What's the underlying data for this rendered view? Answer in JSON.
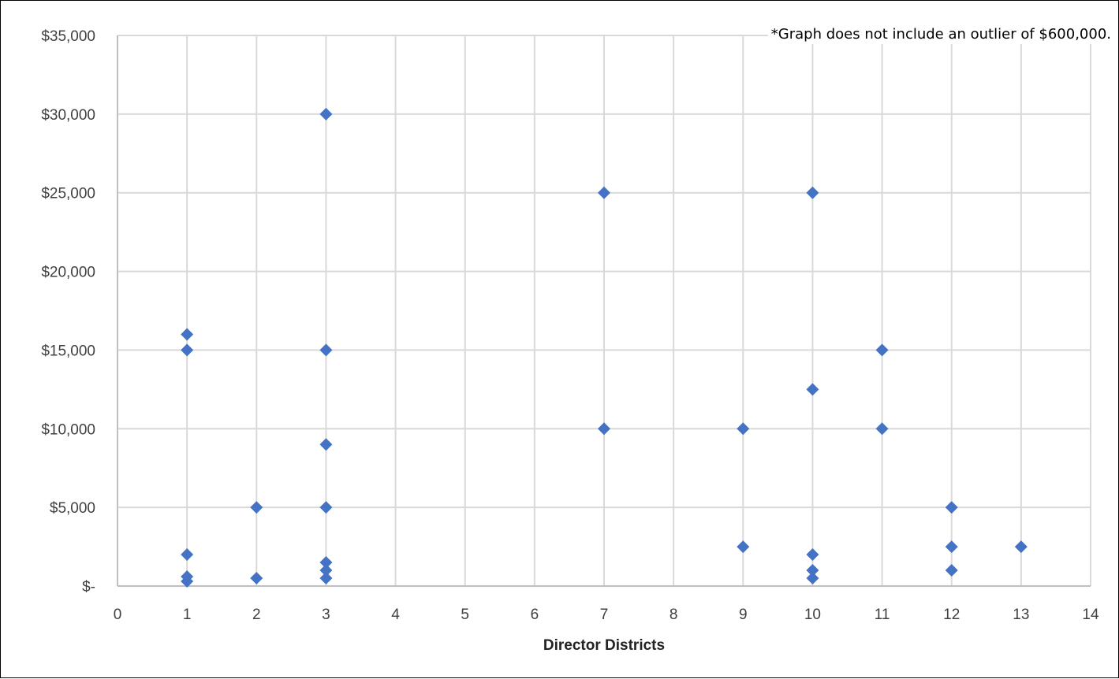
{
  "chart_data": {
    "type": "scatter",
    "title": "",
    "xlabel": "Director Districts",
    "ylabel": "",
    "note": "*Graph does not include an outlier of $600,000.",
    "xlim": [
      0,
      14
    ],
    "ylim": [
      0,
      35000
    ],
    "x_ticks": [
      0,
      1,
      2,
      3,
      4,
      5,
      6,
      7,
      8,
      9,
      10,
      11,
      12,
      13,
      14
    ],
    "x_tick_labels": [
      "0",
      "1",
      "2",
      "3",
      "4",
      "5",
      "6",
      "7",
      "8",
      "9",
      "10",
      "11",
      "12",
      "13",
      "14"
    ],
    "y_ticks": [
      0,
      5000,
      10000,
      15000,
      20000,
      25000,
      30000,
      35000
    ],
    "y_tick_labels": [
      "$-",
      "$5,000",
      "$10,000",
      "$15,000",
      "$20,000",
      "$25,000",
      "$30,000",
      "$35,000"
    ],
    "grid": true,
    "legend": "none",
    "marker": "diamond",
    "color": "#4472C4",
    "series": [
      {
        "points": [
          {
            "x": 1,
            "y": 16000
          },
          {
            "x": 1,
            "y": 15000
          },
          {
            "x": 1,
            "y": 2000
          },
          {
            "x": 1,
            "y": 600
          },
          {
            "x": 1,
            "y": 300
          },
          {
            "x": 2,
            "y": 5000
          },
          {
            "x": 2,
            "y": 500
          },
          {
            "x": 3,
            "y": 30000
          },
          {
            "x": 3,
            "y": 15000
          },
          {
            "x": 3,
            "y": 9000
          },
          {
            "x": 3,
            "y": 5000
          },
          {
            "x": 3,
            "y": 1500
          },
          {
            "x": 3,
            "y": 1000
          },
          {
            "x": 3,
            "y": 500
          },
          {
            "x": 7,
            "y": 25000
          },
          {
            "x": 7,
            "y": 10000
          },
          {
            "x": 9,
            "y": 10000
          },
          {
            "x": 9,
            "y": 2500
          },
          {
            "x": 10,
            "y": 25000
          },
          {
            "x": 10,
            "y": 12500
          },
          {
            "x": 10,
            "y": 2000
          },
          {
            "x": 10,
            "y": 1000
          },
          {
            "x": 10,
            "y": 500
          },
          {
            "x": 11,
            "y": 15000
          },
          {
            "x": 11,
            "y": 10000
          },
          {
            "x": 12,
            "y": 5000
          },
          {
            "x": 12,
            "y": 2500
          },
          {
            "x": 12,
            "y": 1000
          },
          {
            "x": 13,
            "y": 2500
          }
        ]
      }
    ]
  }
}
